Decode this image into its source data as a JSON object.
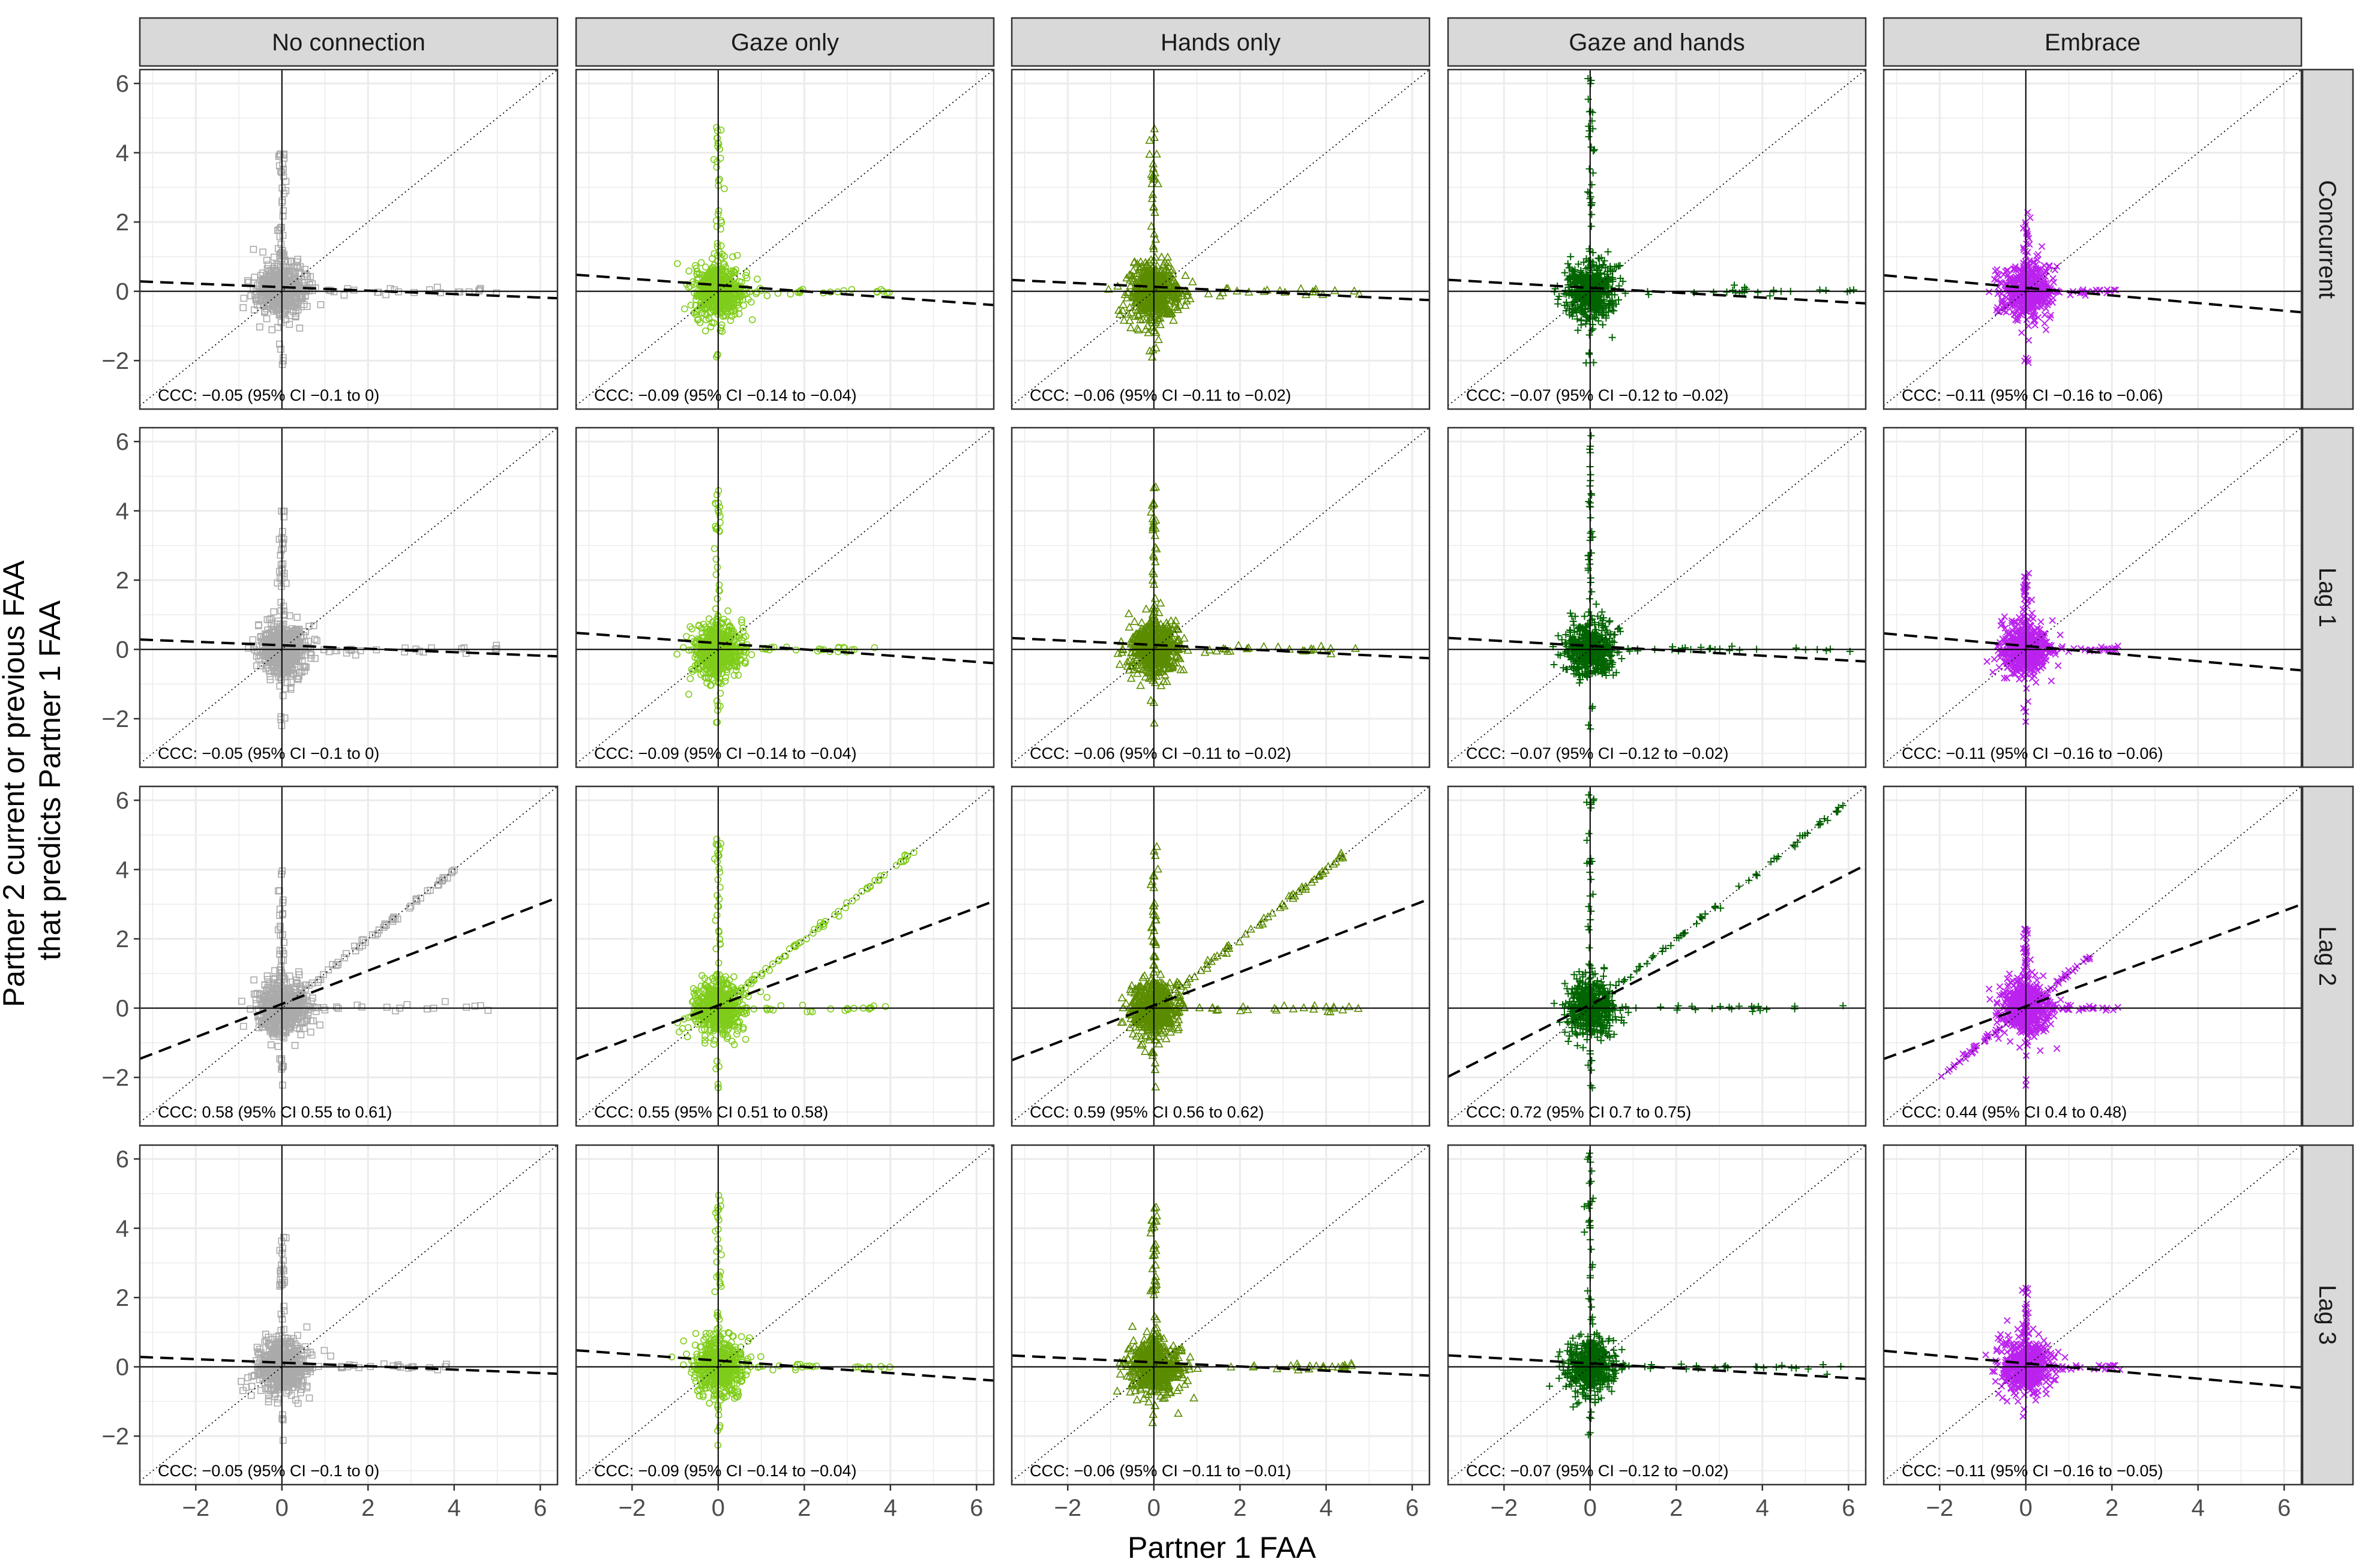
{
  "chart_data": {
    "type": "scatter",
    "layout": "facet-grid",
    "xlabel": "Partner 1 FAA",
    "ylabel": [
      "Partner 2 current or previous FAA",
      "that predicts Partner 1 FAA"
    ],
    "xlim": [
      -3.3,
      6.4
    ],
    "ylim": [
      -3.4,
      6.4
    ],
    "xticks": [
      -2,
      0,
      2,
      4,
      6
    ],
    "yticks": [
      -2,
      0,
      2,
      4,
      6
    ],
    "tick_labels": {
      "x": [
        "−2",
        "0",
        "2",
        "4",
        "6"
      ],
      "y": [
        "−2",
        "0",
        "2",
        "4",
        "6"
      ]
    },
    "columns": [
      {
        "label": "No connection",
        "color": "#aaaaaa",
        "marker": "square"
      },
      {
        "label": "Gaze only",
        "color": "#7fcc1a",
        "marker": "circle"
      },
      {
        "label": "Hands only",
        "color": "#5b8c00",
        "marker": "triangle"
      },
      {
        "label": "Gaze and hands",
        "color": "#006400",
        "marker": "plus"
      },
      {
        "label": "Embrace",
        "color": "#bb22ee",
        "marker": "cross"
      }
    ],
    "rows": [
      "Concurrent",
      "Lag 1",
      "Lag 2",
      "Lag 3"
    ],
    "reference_lines": {
      "identity": "dotted",
      "axes": "solid",
      "fit": "dashed"
    },
    "panels": [
      [
        {
          "ccc": "CCC: −0.05 (95% CI −0.1 to 0)",
          "fit": [
            0.12,
            -0.05
          ]
        },
        {
          "ccc": "CCC: −0.09 (95% CI −0.14 to −0.04)",
          "fit": [
            0.18,
            -0.09
          ]
        },
        {
          "ccc": "CCC: −0.06 (95% CI −0.11 to −0.02)",
          "fit": [
            0.13,
            -0.06
          ]
        },
        {
          "ccc": "CCC: −0.07 (95% CI −0.12 to −0.02)",
          "fit": [
            0.1,
            -0.07
          ]
        },
        {
          "ccc": "CCC: −0.11 (95% CI −0.16 to −0.06)",
          "fit": [
            0.1,
            -0.11
          ]
        }
      ],
      [
        {
          "ccc": "CCC: −0.05 (95% CI −0.1 to 0)",
          "fit": [
            0.12,
            -0.05
          ]
        },
        {
          "ccc": "CCC: −0.09 (95% CI −0.14 to −0.04)",
          "fit": [
            0.18,
            -0.09
          ]
        },
        {
          "ccc": "CCC: −0.06 (95% CI −0.11 to −0.02)",
          "fit": [
            0.13,
            -0.06
          ]
        },
        {
          "ccc": "CCC: −0.07 (95% CI −0.12 to −0.02)",
          "fit": [
            0.1,
            -0.07
          ]
        },
        {
          "ccc": "CCC: −0.11 (95% CI −0.16 to −0.06)",
          "fit": [
            0.1,
            -0.11
          ]
        }
      ],
      [
        {
          "ccc": "CCC: 0.58 (95% CI 0.55 to 0.61)",
          "fit": [
            0.12,
            0.48
          ]
        },
        {
          "ccc": "CCC: 0.55 (95% CI 0.51 to 0.58)",
          "fit": [
            0.08,
            0.47
          ]
        },
        {
          "ccc": "CCC: 0.59 (95% CI 0.56 to 0.62)",
          "fit": [
            0.08,
            0.48
          ]
        },
        {
          "ccc": "CCC: 0.72 (95% CI 0.7 to 0.75)",
          "fit": [
            0.1,
            0.63
          ]
        },
        {
          "ccc": "CCC: 0.44 (95% CI 0.4 to 0.48)",
          "fit": [
            0.05,
            0.46
          ]
        }
      ],
      [
        {
          "ccc": "CCC: −0.05 (95% CI −0.1 to 0)",
          "fit": [
            0.12,
            -0.05
          ]
        },
        {
          "ccc": "CCC: −0.09 (95% CI −0.14 to −0.04)",
          "fit": [
            0.18,
            -0.09
          ]
        },
        {
          "ccc": "CCC: −0.06 (95% CI −0.11 to −0.01)",
          "fit": [
            0.13,
            -0.06
          ]
        },
        {
          "ccc": "CCC: −0.07 (95% CI −0.12 to −0.02)",
          "fit": [
            0.1,
            -0.07
          ]
        },
        {
          "ccc": "CCC: −0.11 (95% CI −0.16 to −0.05)",
          "fit": [
            0.1,
            -0.11
          ]
        }
      ]
    ]
  }
}
